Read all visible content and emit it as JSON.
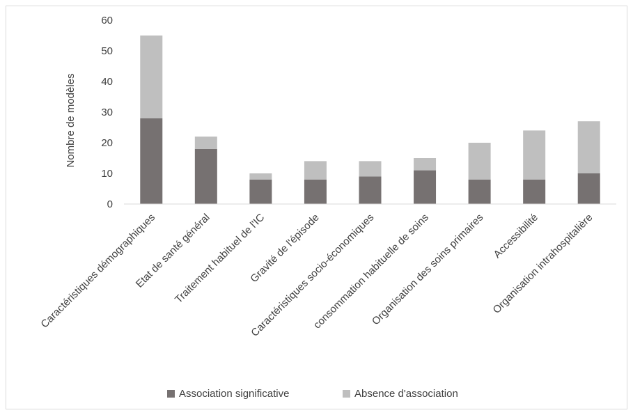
{
  "chart_data": {
    "type": "bar",
    "stacked": true,
    "categories": [
      "Caractéristiques démographiques",
      "Etat de santé général",
      "Traitement habituel de l'IC",
      "Gravité de l'épisode",
      "Caractéristiques socio-économiques",
      "consommation habituelle de soins",
      "Organisation des soins primaires",
      "Accessibilité",
      "Organisation intrahospitalière"
    ],
    "series": [
      {
        "name": "Association significative",
        "color": "#767171",
        "values": [
          28,
          18,
          8,
          8,
          9,
          11,
          8,
          8,
          10
        ]
      },
      {
        "name": "Absence d'association",
        "color": "#bfbfbf",
        "values": [
          27,
          4,
          2,
          6,
          5,
          4,
          12,
          16,
          17
        ]
      }
    ],
    "ylabel": "Nombre de modèles",
    "ylim": [
      0,
      60
    ],
    "yticks": [
      0,
      10,
      20,
      30,
      40,
      50,
      60
    ],
    "grid": false,
    "legend_position": "bottom"
  }
}
